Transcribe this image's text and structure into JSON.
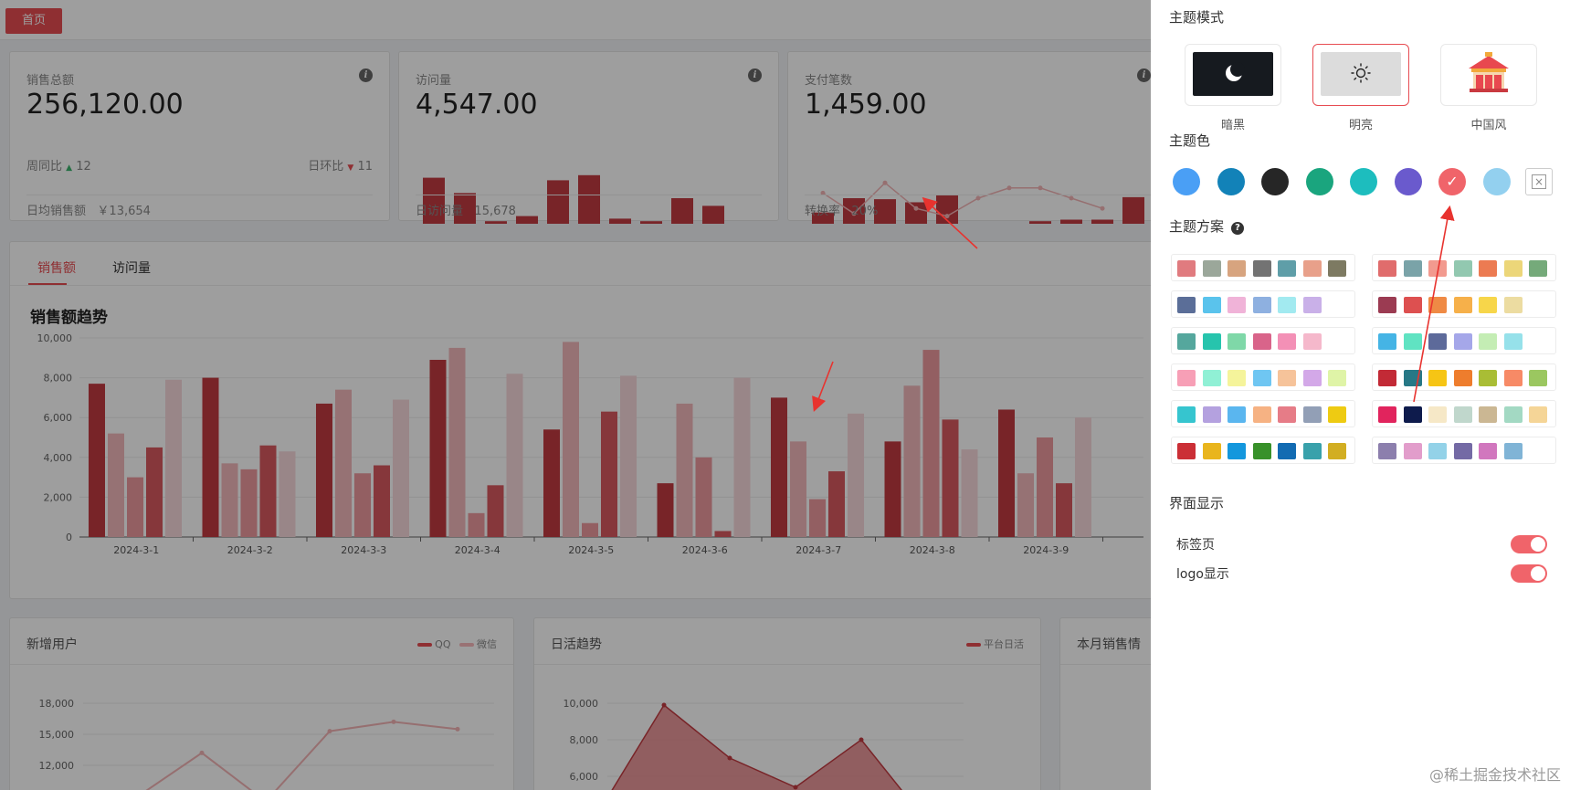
{
  "tabs": {
    "home_label": "首页"
  },
  "stats": [
    {
      "label": "销售总额",
      "value": "256,120.00",
      "week_label": "周同比",
      "week_value": "12",
      "day_label": "日环比",
      "day_value": "11",
      "footer_label": "日均销售额",
      "footer_value": "￥13,654"
    },
    {
      "label": "访问量",
      "value": "4,547.00",
      "footer_label": "日访问量",
      "footer_value": "15,678",
      "spark_values": [
        9,
        6,
        0.5,
        1.5,
        8.5,
        9.5,
        1,
        0.5,
        5,
        3.5
      ]
    },
    {
      "label": "支付笔数",
      "value": "1,459.00",
      "footer_label": "转换率",
      "footer_value": "20%",
      "spark_values": [
        2.2,
        5,
        4.8,
        4.2,
        5.6,
        0,
        0,
        0.5,
        0.8,
        0.8,
        5.2
      ],
      "spark_line": [
        6,
        2,
        8,
        3,
        1.5,
        5,
        7,
        7,
        5,
        3
      ]
    }
  ],
  "sales": {
    "tabs": [
      "销售额",
      "访问量"
    ],
    "title": "销售额趋势"
  },
  "chart_data": {
    "type": "bar",
    "title": "销售额趋势",
    "categories": [
      "2024-3-1",
      "2024-3-2",
      "2024-3-3",
      "2024-3-4",
      "2024-3-5",
      "2024-3-6",
      "2024-3-7",
      "2024-3-8",
      "2024-3-9"
    ],
    "ylim": [
      0,
      10000
    ],
    "yticks": [
      "0",
      "2,000",
      "4,000",
      "6,000",
      "8,000",
      "10,000"
    ],
    "series": [
      {
        "color": "#c23a41",
        "values": [
          7700,
          8000,
          6700,
          8900,
          5400,
          2700,
          7000,
          4800,
          6400
        ]
      },
      {
        "color": "#f2b8bb",
        "values": [
          5200,
          3700,
          7400,
          9500,
          9800,
          6700,
          4800,
          7600,
          3200
        ]
      },
      {
        "color": "#ee999e",
        "values": [
          3000,
          3400,
          3200,
          1200,
          700,
          4000,
          1900,
          9400,
          5000
        ]
      },
      {
        "color": "#d85a60",
        "values": [
          4500,
          4600,
          3600,
          2600,
          6300,
          300,
          3300,
          5900,
          2700
        ]
      },
      {
        "color": "#f7d9db",
        "values": [
          7900,
          4300,
          6900,
          8200,
          8100,
          8000,
          6200,
          4400,
          6000
        ]
      }
    ],
    "grid": true
  },
  "panels": {
    "new_users": {
      "title": "新增用户",
      "legend": [
        "QQ",
        "微信"
      ],
      "yticks": [
        "18,000",
        "15,000",
        "12,000"
      ],
      "line": [
        9000,
        13200,
        8500,
        15300,
        16200,
        15500
      ]
    },
    "daily_active": {
      "title": "日活趋势",
      "legend": [
        "平台日活"
      ],
      "yticks": [
        "10,000",
        "8,000",
        "6,000"
      ],
      "area": [
        4000,
        9900,
        7000,
        5400,
        8000,
        3500
      ]
    },
    "month_sales": {
      "title": "本月销售情"
    }
  },
  "drawer": {
    "mode_title": "主题模式",
    "modes": [
      {
        "label": "暗黑",
        "icon": "moon-icon"
      },
      {
        "label": "明亮",
        "icon": "sun-icon"
      },
      {
        "label": "中国风",
        "icon": "pavilion-icon"
      }
    ],
    "active_mode": 1,
    "color_title": "主题色",
    "colors": [
      "#4a9ff5",
      "#1282b8",
      "#262626",
      "#1aa57e",
      "#1dbdbe",
      "#6a5acd",
      "#f0646a",
      "#93d0ef"
    ],
    "active_color": 6,
    "scheme_title": "主题方案",
    "schemes": [
      [
        "#e07b7f",
        "#9ba79a",
        "#d7a47f",
        "#737373",
        "#5f9ea8",
        "#e8a08a",
        "#7d7a62"
      ],
      [
        "#e06c6c",
        "#7aa3a8",
        "#f29a8f",
        "#92c8b0",
        "#ec7b52",
        "#ecd679",
        "#75aa7a"
      ],
      [
        "#5b6e98",
        "#5ac3ec",
        "#f0b3d8",
        "#8eb0e0",
        "#a2eaf0",
        "#c9b0e8"
      ],
      [
        "#9b3b52",
        "#dd5050",
        "#ef8a45",
        "#f6b04a",
        "#f7d64a",
        "#ecdca1"
      ],
      [
        "#55a79d",
        "#27c4ad",
        "#7fd8a8",
        "#d9648a",
        "#f390b6",
        "#f5b8cb"
      ],
      [
        "#45b4e5",
        "#60e3c2",
        "#5d6a9a",
        "#a5a7e9",
        "#c4edb4",
        "#96e1ea"
      ],
      [
        "#f79fb6",
        "#90f0d5",
        "#f5f49b",
        "#6fc6f2",
        "#f6c39a",
        "#d3a8e8",
        "#dff4a7"
      ],
      [
        "#c22a36",
        "#277886",
        "#f6c515",
        "#ee7d2d",
        "#a9bd35",
        "#f78a66",
        "#9bc760"
      ],
      [
        "#36c5cf",
        "#b4a1df",
        "#5ab6ef",
        "#f6b283",
        "#e67c87",
        "#929fb6",
        "#eecb12"
      ],
      [
        "#e1245d",
        "#0e1b4c",
        "#f6e8c7",
        "#c0d7cc",
        "#cbb793",
        "#a3d9c3",
        "#f5d597"
      ],
      [
        "#cb2f36",
        "#e9b51d",
        "#1497dd",
        "#38912a",
        "#126bb2",
        "#39a1ab",
        "#d2ae22"
      ],
      [
        "#8c7fad",
        "#e29dcb",
        "#93d2e8",
        "#746aa5",
        "#d177be",
        "#80b4d6"
      ]
    ],
    "display_title": "界面显示",
    "switches": [
      {
        "label": "标签页",
        "on": true
      },
      {
        "label": "logo显示",
        "on": true
      }
    ]
  },
  "watermark": "@稀土掘金技术社区"
}
